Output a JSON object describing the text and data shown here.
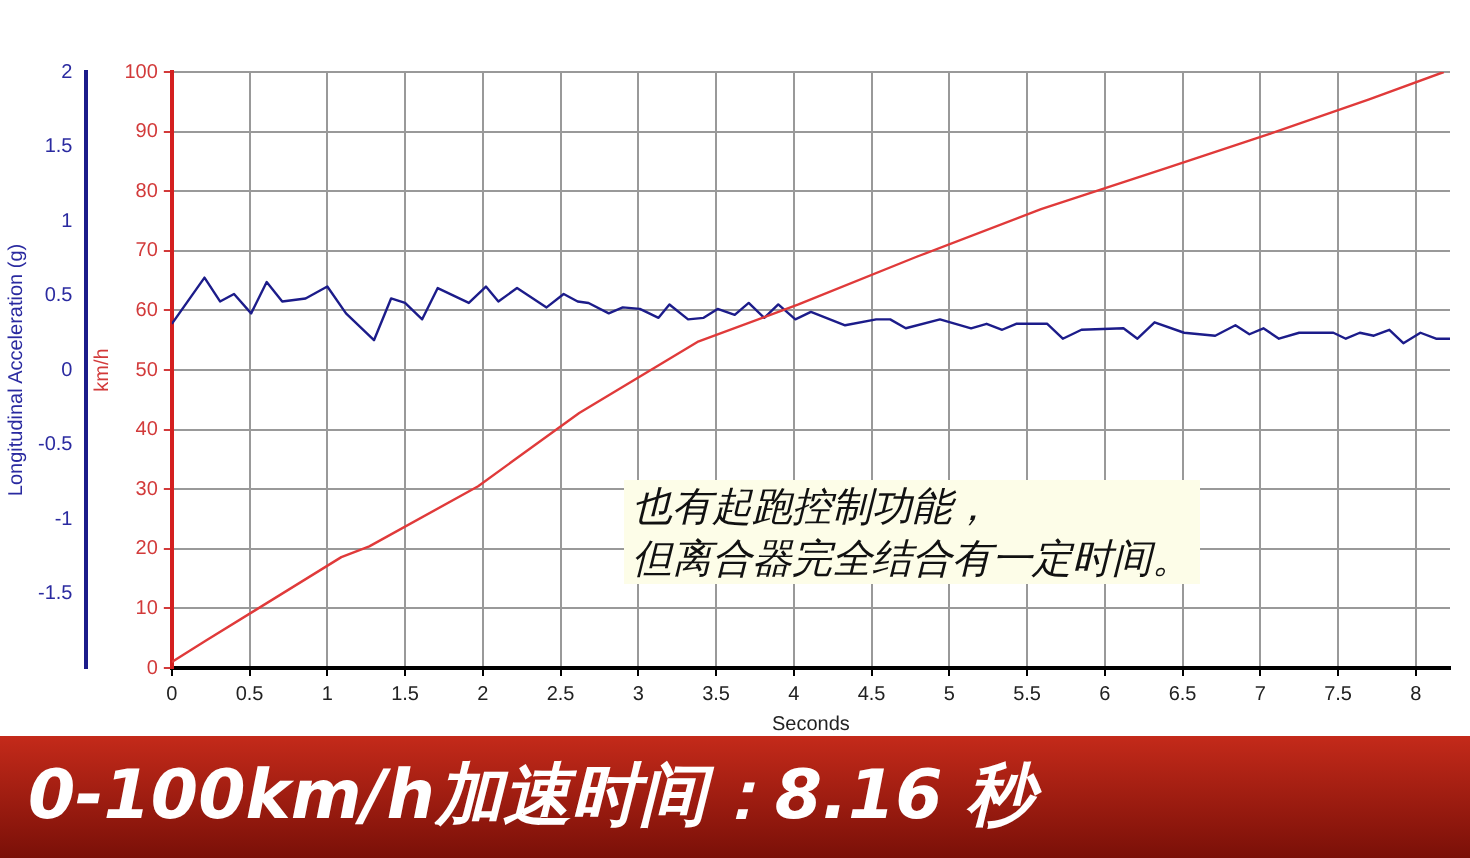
{
  "chart_data": {
    "type": "line",
    "xlabel": "Seconds",
    "ylabel": "km/h",
    "y2label": "Longitudinal Acceleration (g)",
    "xlim": [
      0,
      8.22
    ],
    "xticks": [
      0,
      0.5,
      1,
      1.5,
      2,
      2.5,
      3,
      3.5,
      4,
      4.5,
      5,
      5.5,
      6,
      6.5,
      7,
      7.5,
      8
    ],
    "ylim": [
      0,
      100
    ],
    "yticks": [
      0,
      10,
      20,
      30,
      40,
      50,
      60,
      70,
      80,
      90,
      100
    ],
    "y2lim": [
      -2,
      2
    ],
    "y2ticks": [
      -1.5,
      -1,
      -0.5,
      0,
      0.5,
      1,
      1.5,
      2
    ],
    "grid": true,
    "legend": false,
    "marker": "none",
    "line_style": "solid",
    "series": [
      {
        "color": "#e03a3a",
        "x": [
          0,
          0.22,
          1.09,
          1.27,
          1.97,
          2.62,
          3.38,
          4.03,
          4.79,
          5.59,
          6.41,
          7.06,
          7.7,
          8.18
        ],
        "values": [
          1,
          4.6,
          18.6,
          20.4,
          30.5,
          42.8,
          54.7,
          61,
          69,
          77,
          84,
          89.6,
          95.4,
          100
        ]
      },
      {
        "color": "#1c1c8a",
        "axis": "y2",
        "x": [
          0,
          0.21,
          0.31,
          0.4,
          0.51,
          0.61,
          0.71,
          0.86,
          1.0,
          1.12,
          1.3,
          1.41,
          1.5,
          1.61,
          1.71,
          1.91,
          2.02,
          2.1,
          2.22,
          2.41,
          2.52,
          2.61,
          2.68,
          2.81,
          2.9,
          3.01,
          3.13,
          3.2,
          3.32,
          3.42,
          3.51,
          3.62,
          3.71,
          3.81,
          3.9,
          4.01,
          4.11,
          4.33,
          4.53,
          4.62,
          4.72,
          4.94,
          5.14,
          5.24,
          5.34,
          5.43,
          5.63,
          5.73,
          5.85,
          6.12,
          6.21,
          6.32,
          6.51,
          6.71,
          6.84,
          6.93,
          7.02,
          7.12,
          7.25,
          7.47,
          7.55,
          7.64,
          7.73,
          7.83,
          7.92,
          8.03,
          8.13,
          8.22
        ],
        "values": [
          0.31,
          0.62,
          0.46,
          0.51,
          0.38,
          0.59,
          0.46,
          0.48,
          0.56,
          0.38,
          0.2,
          0.48,
          0.45,
          0.34,
          0.55,
          0.45,
          0.56,
          0.46,
          0.55,
          0.42,
          0.51,
          0.46,
          0.45,
          0.38,
          0.42,
          0.41,
          0.35,
          0.44,
          0.34,
          0.35,
          0.41,
          0.37,
          0.45,
          0.35,
          0.44,
          0.34,
          0.39,
          0.3,
          0.34,
          0.34,
          0.28,
          0.34,
          0.28,
          0.31,
          0.27,
          0.31,
          0.31,
          0.21,
          0.27,
          0.28,
          0.21,
          0.32,
          0.25,
          0.23,
          0.3,
          0.24,
          0.28,
          0.21,
          0.25,
          0.25,
          0.21,
          0.25,
          0.23,
          0.27,
          0.18,
          0.25,
          0.21,
          0.21
        ]
      }
    ],
    "annotations": [
      "也有起跑控制功能，",
      "但离合器完全结合有一定时间。",
      "0-100km/h加速时间：8.16 秒"
    ]
  }
}
